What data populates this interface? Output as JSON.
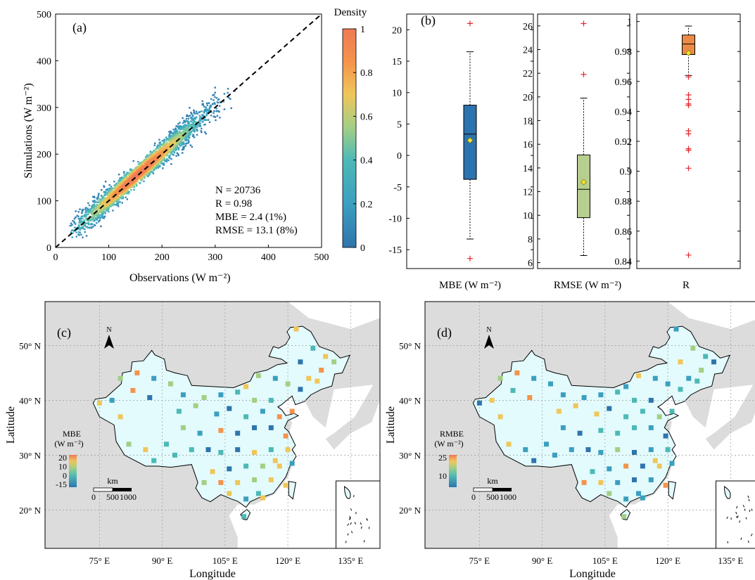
{
  "colors": {
    "density_stops": [
      "#2f74ad",
      "#3b9fc0",
      "#4db9b6",
      "#a3cf84",
      "#f0c659",
      "#f4934b",
      "#ef7a54"
    ],
    "box_mbe": "#2d73ad",
    "box_rmse": "#b6cf8e",
    "box_r": "#ec8b47",
    "mean_marker": "#f2e22b",
    "outlier": "#e8262b",
    "land_gray": "#dcdcdc",
    "china_fill": "#e3fbfd",
    "sea": "#ffffff"
  },
  "panel_a": {
    "label": "(a)",
    "xlabel": "Observations (W m⁻²)",
    "ylabel": "Simulations (W m⁻²)",
    "xticks": [
      "0",
      "100",
      "200",
      "300",
      "400",
      "500"
    ],
    "yticks": [
      "0",
      "100",
      "200",
      "300",
      "400",
      "500"
    ],
    "stats": [
      "N = 20736",
      "R = 0.98",
      "MBE = 2.4 (1%)",
      "RMSE = 13.1 (8%)"
    ],
    "colorbar_title": "Density",
    "colorbar_ticks": [
      "0",
      "0.2",
      "0.4",
      "0.6",
      "0.8",
      "1"
    ]
  },
  "panel_b": {
    "label": "(b)",
    "xlabels": [
      "MBE (W m⁻²)",
      "RMSE (W m⁻²)",
      "R"
    ],
    "mbe_ticks": [
      "20",
      "15",
      "10",
      "5",
      "0",
      "-5",
      "-10",
      "-15"
    ],
    "rmse_ticks": [
      "26",
      "24",
      "22",
      "20",
      "18",
      "16",
      "14",
      "12",
      "10",
      "8",
      "6"
    ],
    "r_ticks": [
      "1",
      "0.98",
      "0.96",
      "0.94",
      "0.92",
      "0.9",
      "0.88",
      "0.86",
      "0.84"
    ]
  },
  "panel_c": {
    "label": "(c)",
    "legend_title_1": "MBE",
    "legend_title_2": "(W m⁻²)",
    "legend_ticks": [
      "20",
      "10",
      "0",
      "-15"
    ]
  },
  "panel_d": {
    "label": "(d)",
    "legend_title_1": "RMBE",
    "legend_title_2": "(W m⁻²)",
    "legend_ticks": [
      "25",
      "10"
    ]
  },
  "maps_common": {
    "xlabel": "Longitude",
    "ylabel": "Latitude",
    "lon_ticks": [
      "75° E",
      "90° E",
      "105° E",
      "120° E",
      "135° E"
    ],
    "lat_ticks": [
      "50° N",
      "40° N",
      "30° N",
      "20° N"
    ],
    "north": "N",
    "scale_unit": "km",
    "scale_labels": [
      "0",
      "500",
      "1000"
    ]
  },
  "chart_data": [
    {
      "type": "scatter",
      "title": "(a)",
      "xlabel": "Observations (W m⁻²)",
      "ylabel": "Simulations (W m⁻²)",
      "xlim": [
        0,
        500
      ],
      "ylim": [
        0,
        500
      ],
      "reference_line": "1:1 dashed",
      "density_colorbar": [
        0,
        1
      ],
      "stats": {
        "N": 20736,
        "R": 0.98,
        "MBE": 2.4,
        "MBE_pct": 1,
        "RMSE": 13.1,
        "RMSE_pct": 8
      },
      "point_cloud": {
        "x_range": [
          25,
          345
        ],
        "y_range": [
          25,
          340
        ],
        "peak_density_near": [
          150,
          150
        ]
      }
    },
    {
      "type": "box",
      "title": "(b)",
      "series": [
        {
          "name": "MBE (W m⁻²)",
          "ylim": [
            -18,
            22.5
          ],
          "q1": -3.8,
          "median": 3.4,
          "q3": 8.0,
          "whisker_low": -13.3,
          "whisker_high": 16.5,
          "mean": 2.4,
          "outliers": [
            21.0,
            -16.4
          ]
        },
        {
          "name": "RMSE (W m⁻²)",
          "ylim": [
            5.5,
            27
          ],
          "q1": 9.8,
          "median": 12.2,
          "q3": 15.1,
          "whisker_low": 6.6,
          "whisker_high": 19.9,
          "mean": 12.8,
          "outliers": [
            26.2,
            21.9
          ]
        },
        {
          "name": "R",
          "ylim": [
            0.835,
            1.005
          ],
          "q1": 0.978,
          "median": 0.985,
          "q3": 0.991,
          "whisker_low": 0.964,
          "whisker_high": 0.997,
          "mean": 0.979,
          "outliers": [
            0.963,
            0.951,
            0.948,
            0.945,
            0.944,
            0.927,
            0.925,
            0.915,
            0.914,
            0.902,
            0.844
          ]
        }
      ]
    },
    {
      "type": "map",
      "title": "(c)",
      "variable": "MBE",
      "colorbar_range": [
        -15,
        20
      ],
      "lon_range": [
        62,
        142
      ],
      "lat_range": [
        13,
        58
      ]
    },
    {
      "type": "map",
      "title": "(d)",
      "variable": "RMBE",
      "colorbar_range": [
        5,
        30
      ],
      "lon_range": [
        62,
        142
      ],
      "lat_range": [
        13,
        58
      ]
    }
  ]
}
